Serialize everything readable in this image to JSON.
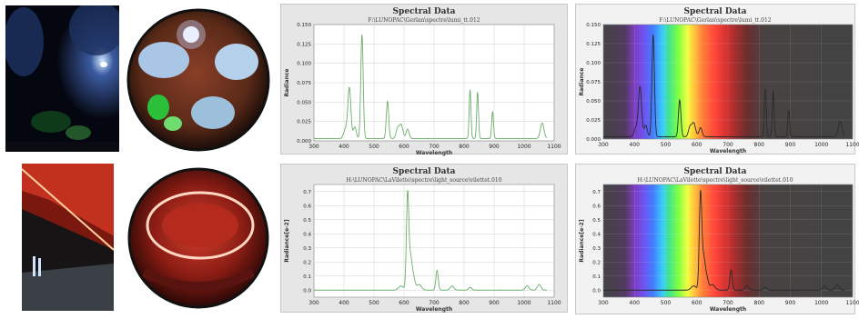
{
  "panels": [
    {
      "title": "Spectral Data",
      "subtitle": "F:\\LUNOPAC\\Gerlan\\spectre\\lumi_tt.012"
    },
    {
      "title": "Spectral Data",
      "subtitle": "F:\\LUNOPAC\\Gerlan\\spectre\\lumi_tt.012"
    },
    {
      "title": "Spectral Data",
      "subtitle": "H:\\LUNOPAC\\LaVilette\\spectre\\light_source\\vilettet.010"
    },
    {
      "title": "Spectral Data",
      "subtitle": "H:\\LUNOPAC\\LaVilette\\spectre\\light_source\\vilettet.010"
    }
  ],
  "colors": {
    "line_plain": "#6cae6c",
    "line_spectrum": "#2b2b2b",
    "grid": "#d2d2d2"
  },
  "chart_data": [
    {
      "type": "line",
      "title": "Spectral Data",
      "subtitle": "F:\\LUNOPAC\\Gerlan\\spectre\\lumi_tt.012",
      "xlabel": "Wavelength",
      "ylabel": "Radiance",
      "xlim": [
        300,
        1100
      ],
      "ylim": [
        0,
        0.15
      ],
      "xticks": [
        "300",
        "400",
        "500",
        "600",
        "700",
        "800",
        "900",
        "1000",
        "1100"
      ],
      "yticks": [
        "0.000",
        "0.025",
        "0.050",
        "0.075",
        "0.100",
        "0.125",
        "0.150"
      ],
      "baseline": 0.003,
      "peaks": [
        [
          405,
          0.012,
          6
        ],
        [
          418,
          0.065,
          5
        ],
        [
          436,
          0.015,
          5
        ],
        [
          460,
          0.134,
          4
        ],
        [
          545,
          0.048,
          4
        ],
        [
          578,
          0.012,
          5
        ],
        [
          590,
          0.018,
          6
        ],
        [
          612,
          0.012,
          5
        ],
        [
          820,
          0.063,
          3
        ],
        [
          845,
          0.06,
          3
        ],
        [
          895,
          0.035,
          3
        ],
        [
          1060,
          0.02,
          6
        ]
      ]
    },
    {
      "type": "line",
      "title": "Spectral Data",
      "subtitle": "F:\\LUNOPAC\\Gerlan\\spectre\\lumi_tt.012",
      "xlabel": "Wavelength",
      "ylabel": "Radiance",
      "xlim": [
        300,
        1100
      ],
      "ylim": [
        0,
        0.15
      ],
      "xticks": [
        "300",
        "400",
        "500",
        "600",
        "700",
        "800",
        "900",
        "1000",
        "1100"
      ],
      "yticks": [
        "0.000",
        "0.025",
        "0.050",
        "0.075",
        "0.100",
        "0.125",
        "0.150"
      ],
      "baseline": 0.003,
      "peaks": [
        [
          405,
          0.012,
          6
        ],
        [
          418,
          0.065,
          5
        ],
        [
          436,
          0.015,
          5
        ],
        [
          460,
          0.134,
          4
        ],
        [
          545,
          0.048,
          4
        ],
        [
          578,
          0.012,
          5
        ],
        [
          590,
          0.018,
          6
        ],
        [
          612,
          0.012,
          5
        ],
        [
          820,
          0.063,
          3
        ],
        [
          845,
          0.06,
          3
        ],
        [
          895,
          0.035,
          3
        ],
        [
          1060,
          0.02,
          6
        ]
      ]
    },
    {
      "type": "line",
      "title": "Spectral Data",
      "subtitle": "H:\\LUNOPAC\\LaVilette\\spectre\\light_source\\vilettet.010",
      "xlabel": "Wavelength",
      "ylabel": "Radiance[e-2]",
      "xlim": [
        300,
        1100
      ],
      "ylim": [
        -0.05,
        0.75
      ],
      "xticks": [
        "300",
        "400",
        "500",
        "600",
        "700",
        "800",
        "900",
        "1000",
        "1100"
      ],
      "yticks": [
        "0.0",
        "0.1",
        "0.2",
        "0.3",
        "0.4",
        "0.5",
        "0.6",
        "0.7"
      ],
      "baseline": 0.0,
      "peaks": [
        [
          590,
          0.03,
          8
        ],
        [
          612,
          0.68,
          4
        ],
        [
          622,
          0.22,
          5
        ],
        [
          632,
          0.08,
          5
        ],
        [
          650,
          0.04,
          8
        ],
        [
          710,
          0.14,
          4
        ],
        [
          760,
          0.03,
          6
        ],
        [
          820,
          0.02,
          5
        ],
        [
          1010,
          0.03,
          6
        ],
        [
          1050,
          0.04,
          6
        ]
      ]
    },
    {
      "type": "line",
      "title": "Spectral Data",
      "subtitle": "H:\\LUNOPAC\\LaVilette\\spectre\\light_source\\vilettet.010",
      "xlabel": "Wavelength",
      "ylabel": "Radiance[e-2]",
      "xlim": [
        300,
        1100
      ],
      "ylim": [
        -0.05,
        0.75
      ],
      "xticks": [
        "300",
        "400",
        "500",
        "600",
        "700",
        "800",
        "900",
        "1000",
        "1100"
      ],
      "yticks": [
        "0.0",
        "0.1",
        "0.2",
        "0.3",
        "0.4",
        "0.5",
        "0.6",
        "0.7"
      ],
      "baseline": 0.0,
      "peaks": [
        [
          590,
          0.03,
          8
        ],
        [
          612,
          0.68,
          4
        ],
        [
          622,
          0.22,
          5
        ],
        [
          632,
          0.08,
          5
        ],
        [
          650,
          0.04,
          8
        ],
        [
          710,
          0.14,
          4
        ],
        [
          760,
          0.03,
          6
        ],
        [
          820,
          0.02,
          5
        ],
        [
          1010,
          0.03,
          6
        ],
        [
          1050,
          0.04,
          6
        ]
      ]
    }
  ]
}
